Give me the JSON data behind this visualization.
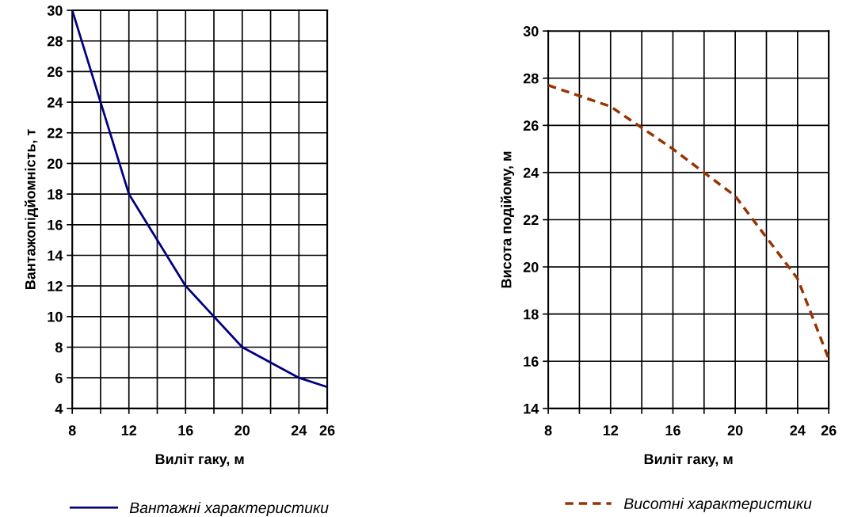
{
  "chart_data": [
    {
      "type": "line",
      "xlabel": "Виліт гаку, м",
      "ylabel": "Вантажопідйомність, т",
      "x": [
        8,
        12,
        16,
        20,
        24,
        26
      ],
      "series": [
        {
          "name": "Вантажні характеристики",
          "color": "#000080",
          "values": [
            30,
            18,
            12,
            8,
            6,
            5.4
          ],
          "line_style": "solid"
        }
      ],
      "xlim": [
        8,
        26
      ],
      "xticks": [
        8,
        {
          "value": 10,
          "label": null
        },
        12,
        {
          "value": 14,
          "label": null
        },
        16,
        {
          "value": 18,
          "label": null
        },
        20,
        {
          "value": 22,
          "label": null
        },
        24,
        26
      ],
      "ylim": [
        4,
        30
      ],
      "yticks": [
        4,
        6,
        8,
        10,
        12,
        14,
        16,
        18,
        20,
        22,
        24,
        26,
        28,
        30
      ],
      "grid": true,
      "legend": "bottom",
      "marker": "none"
    },
    {
      "type": "line",
      "xlabel": "Виліт гаку, м",
      "ylabel": "Висота подійому, м",
      "x": [
        8,
        12,
        16,
        20,
        24,
        26
      ],
      "series": [
        {
          "name": "Висотні характеристики",
          "color": "#993300",
          "values": [
            27.7,
            26.8,
            25,
            23,
            19.5,
            16.1
          ],
          "line_style": "dashed"
        }
      ],
      "xlim": [
        8,
        26
      ],
      "xticks": [
        8,
        {
          "value": 10,
          "label": null
        },
        12,
        {
          "value": 14,
          "label": null
        },
        16,
        {
          "value": 18,
          "label": null
        },
        20,
        {
          "value": 22,
          "label": null
        },
        24,
        26
      ],
      "ylim": [
        14,
        30
      ],
      "yticks": [
        14,
        16,
        18,
        20,
        22,
        24,
        26,
        28,
        30
      ],
      "grid": true,
      "legend": "bottom",
      "marker": "none"
    }
  ]
}
